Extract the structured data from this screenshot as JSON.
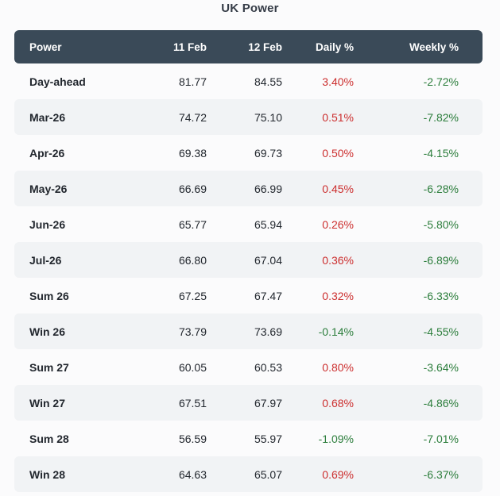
{
  "title": "UK Power",
  "chart_data": {
    "type": "table",
    "title": "UK Power",
    "columns": [
      "Power",
      "11 Feb",
      "12 Feb",
      "Daily %",
      "Weekly %"
    ],
    "rows": [
      {
        "label": "Day-ahead",
        "feb11": "81.77",
        "feb12": "84.55",
        "daily": "3.40%",
        "weekly": "-2.72%"
      },
      {
        "label": "Mar-26",
        "feb11": "74.72",
        "feb12": "75.10",
        "daily": "0.51%",
        "weekly": "-7.82%"
      },
      {
        "label": "Apr-26",
        "feb11": "69.38",
        "feb12": "69.73",
        "daily": "0.50%",
        "weekly": "-4.15%"
      },
      {
        "label": "May-26",
        "feb11": "66.69",
        "feb12": "66.99",
        "daily": "0.45%",
        "weekly": "-6.28%"
      },
      {
        "label": "Jun-26",
        "feb11": "65.77",
        "feb12": "65.94",
        "daily": "0.26%",
        "weekly": "-5.80%"
      },
      {
        "label": "Jul-26",
        "feb11": "66.80",
        "feb12": "67.04",
        "daily": "0.36%",
        "weekly": "-6.89%"
      },
      {
        "label": "Sum 26",
        "feb11": "67.25",
        "feb12": "67.47",
        "daily": "0.32%",
        "weekly": "-6.33%"
      },
      {
        "label": "Win 26",
        "feb11": "73.79",
        "feb12": "73.69",
        "daily": "-0.14%",
        "weekly": "-4.55%"
      },
      {
        "label": "Sum 27",
        "feb11": "60.05",
        "feb12": "60.53",
        "daily": "0.80%",
        "weekly": "-3.64%"
      },
      {
        "label": "Win 27",
        "feb11": "67.51",
        "feb12": "67.97",
        "daily": "0.68%",
        "weekly": "-4.86%"
      },
      {
        "label": "Sum 28",
        "feb11": "56.59",
        "feb12": "55.97",
        "daily": "-1.09%",
        "weekly": "-7.01%"
      },
      {
        "label": "Win 28",
        "feb11": "64.63",
        "feb12": "65.07",
        "daily": "0.69%",
        "weekly": "-6.37%"
      }
    ]
  },
  "colors": {
    "page_bg": "#fbfbfc",
    "title": "#353c47",
    "header_bg": "#3a4a58",
    "header_text": "#ffffff",
    "stripe_bg": "#f1f3f5",
    "text": "#22272e",
    "increase": "#cc2e2e",
    "decrease": "#2b7d3b"
  }
}
